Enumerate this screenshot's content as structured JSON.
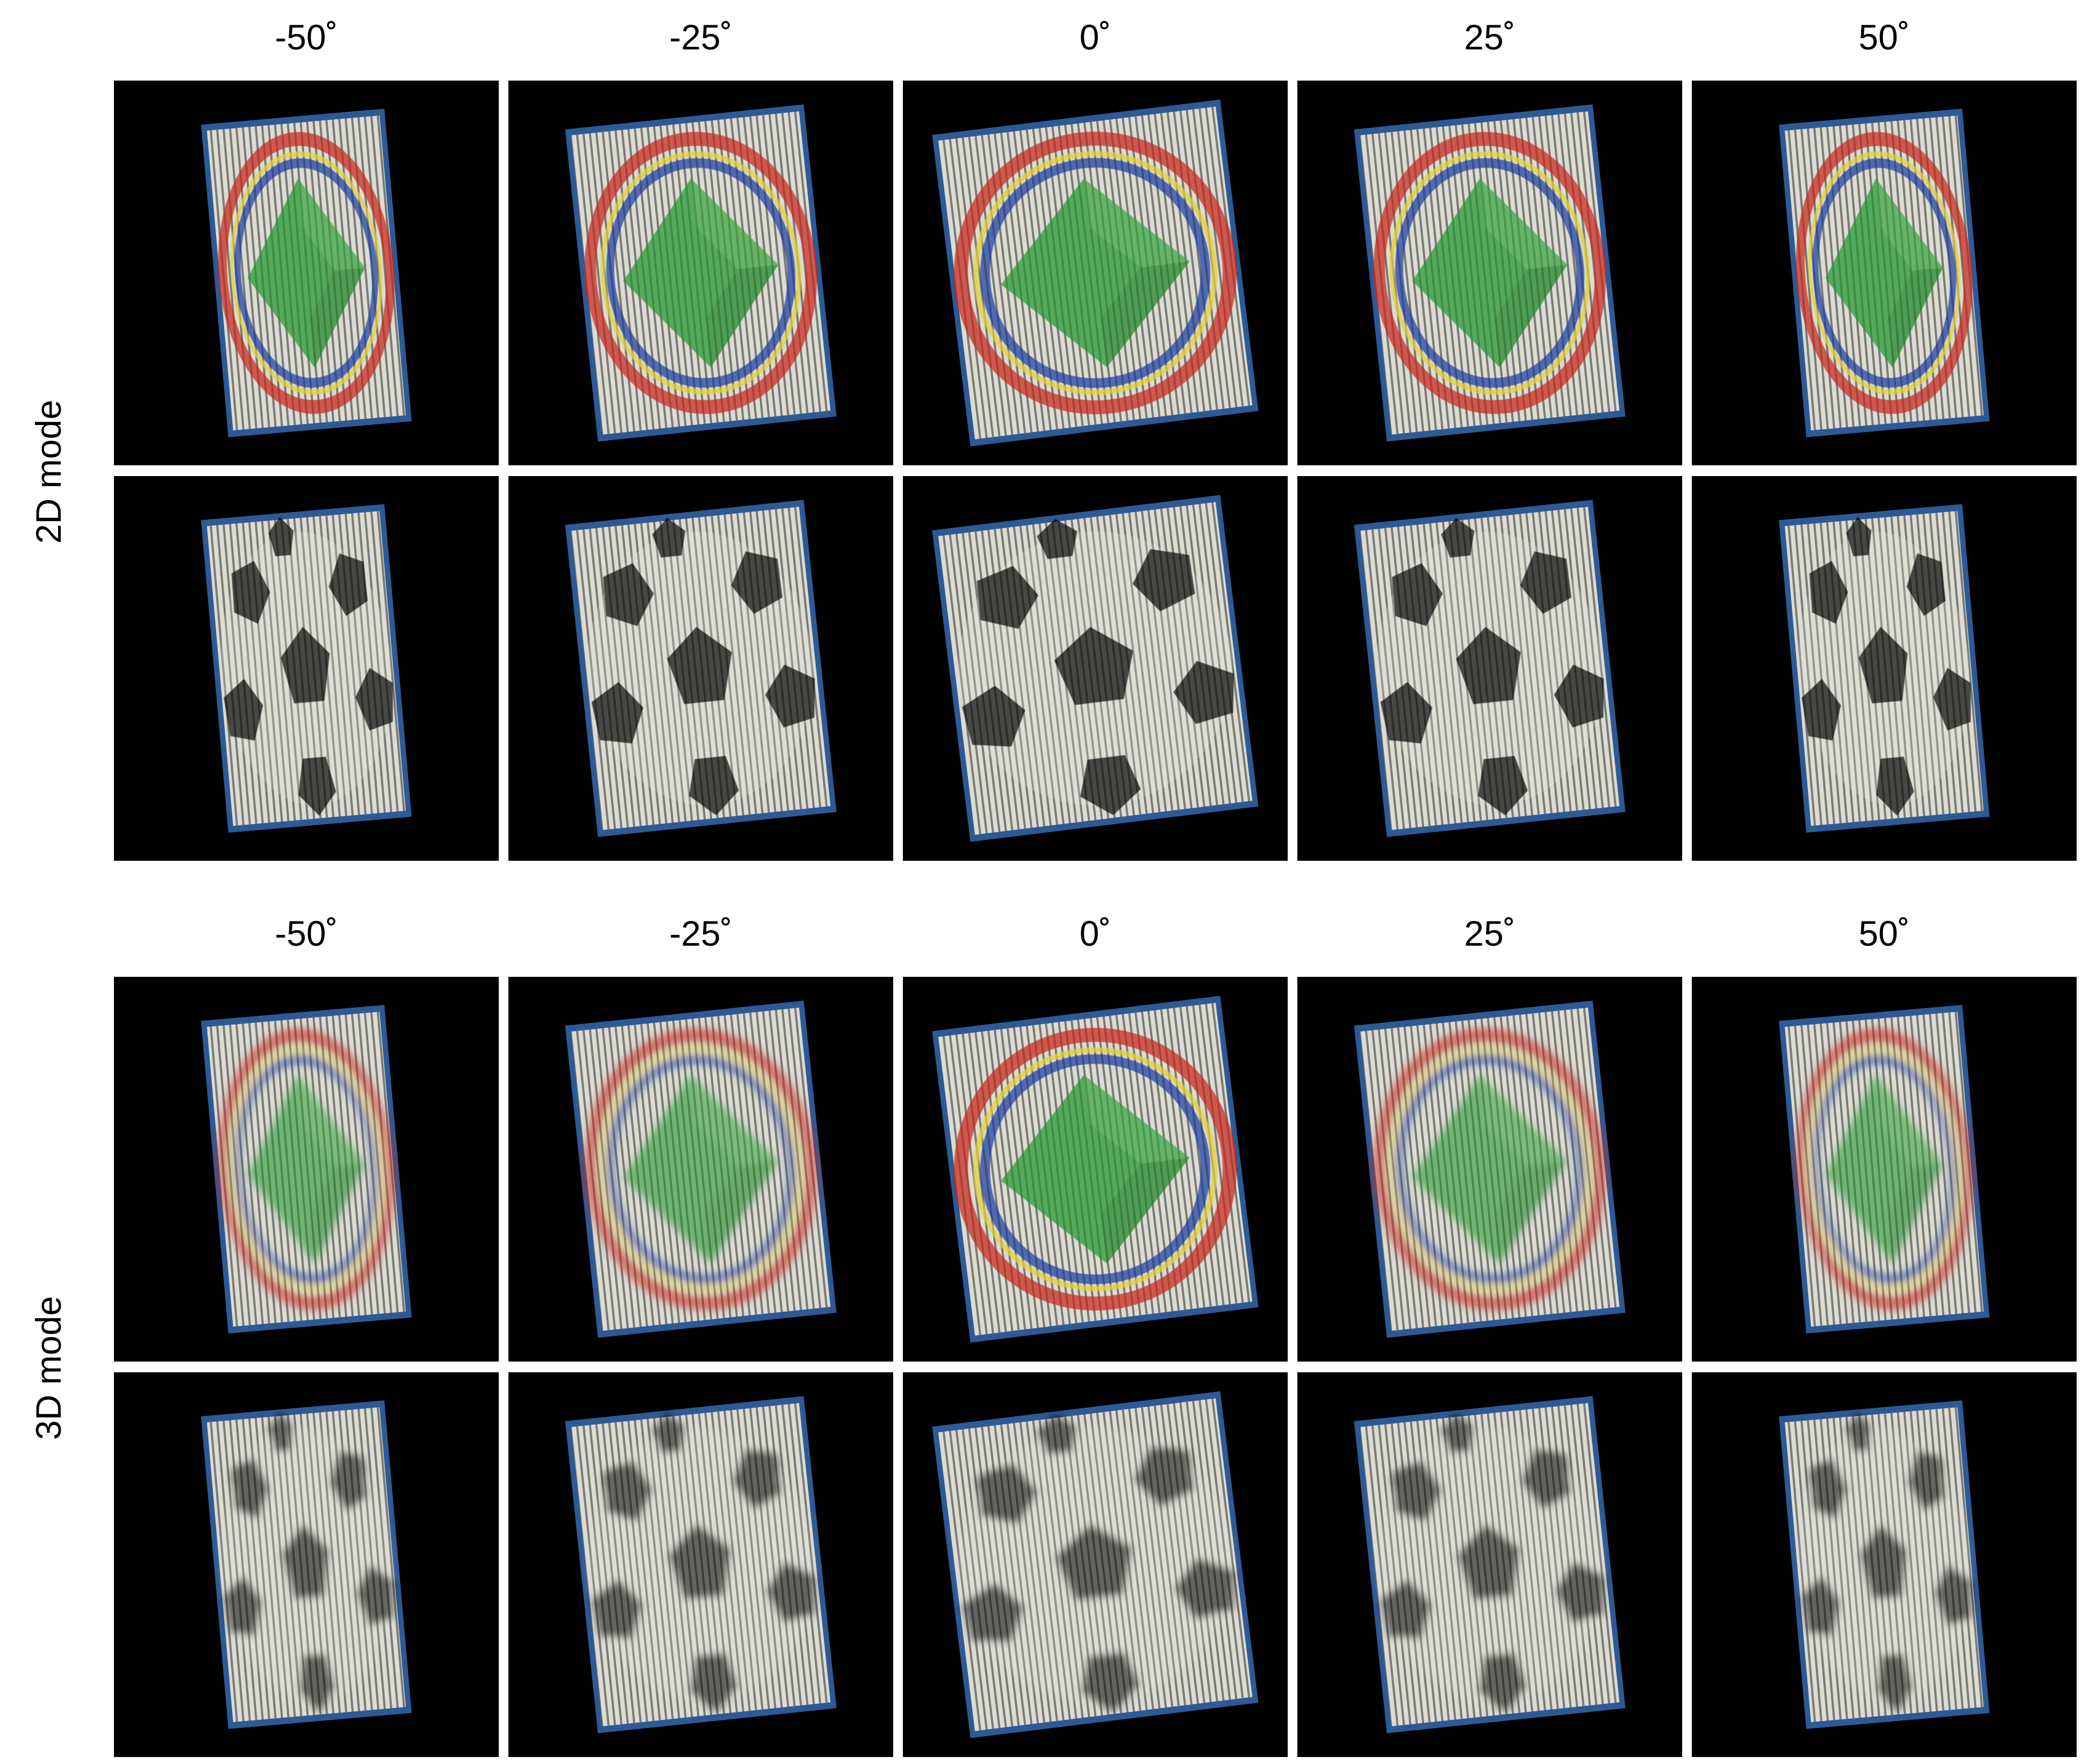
{
  "sections": [
    {
      "mode_label": "2D mode",
      "angles": [
        "-50˚",
        "-25˚",
        "0˚",
        "25˚",
        "50˚"
      ],
      "rows": [
        {
          "subject": "rings-cube",
          "blur": [
            0,
            0,
            0,
            0,
            0
          ]
        },
        {
          "subject": "soccer-ball",
          "blur": [
            0,
            0,
            0,
            0,
            0
          ]
        }
      ]
    },
    {
      "mode_label": "3D mode",
      "angles": [
        "-50˚",
        "-25˚",
        "0˚",
        "25˚",
        "50˚"
      ],
      "rows": [
        {
          "subject": "rings-cube",
          "blur": [
            1,
            1,
            0,
            1,
            1
          ]
        },
        {
          "subject": "soccer-ball",
          "blur": [
            1,
            1,
            1,
            1,
            1
          ]
        }
      ]
    }
  ],
  "colors": {
    "background": "#000000",
    "screen": "#dcdcd2",
    "ring_red": "#c8281e",
    "ring_yellow": "#e6d232",
    "ring_blue": "#1e3ca0",
    "cube": "#24962f",
    "ball_patch": "#0a0a0a"
  }
}
